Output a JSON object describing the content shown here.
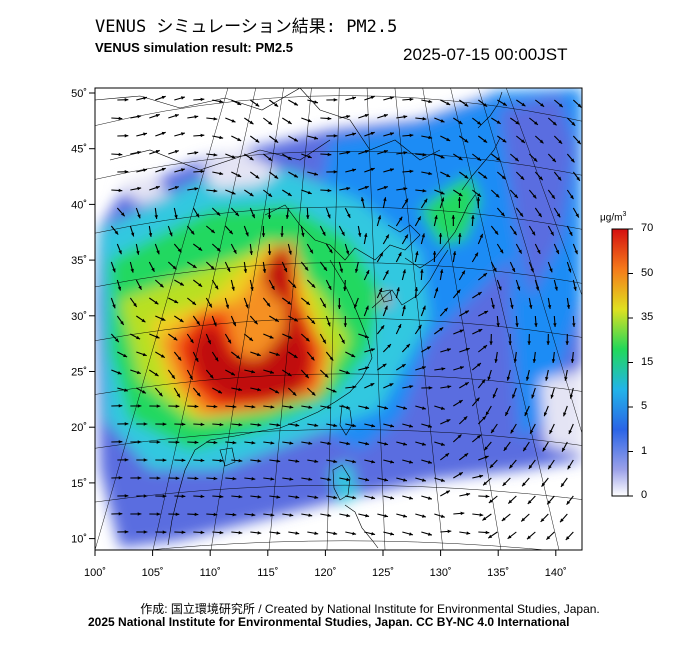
{
  "header": {
    "title_jp": "VENUS シミュレーション結果: PM2.5",
    "title_en": "VENUS simulation result: PM2.5",
    "timestamp": "2025-07-15 00:00JST"
  },
  "map": {
    "lon_ticks": [
      "100˚",
      "105˚",
      "110˚",
      "115˚",
      "120˚",
      "125˚",
      "130˚",
      "135˚",
      "140˚"
    ],
    "lat_ticks": [
      "50˚",
      "45˚",
      "40˚",
      "35˚",
      "30˚",
      "25˚",
      "20˚",
      "15˚",
      "10˚"
    ]
  },
  "colorbar": {
    "unit": "μg/m",
    "unit_sup": "3",
    "ticks": [
      "70",
      "50",
      "35",
      "15",
      "5",
      "1",
      "0"
    ],
    "colors": [
      "#e4e4f4",
      "#5a6de0",
      "#1f8cf5",
      "#33c8e0",
      "#23d860",
      "#b8e020",
      "#f0d020",
      "#f59020",
      "#f03010",
      "#c01010"
    ]
  },
  "footer": {
    "credit": "作成: 国立環境研究所 / Created by National Institute for Environmental Studies, Japan.",
    "copyright": "2025 National Institute for Environmental Studies, Japan. CC BY-NC 4.0 International"
  }
}
